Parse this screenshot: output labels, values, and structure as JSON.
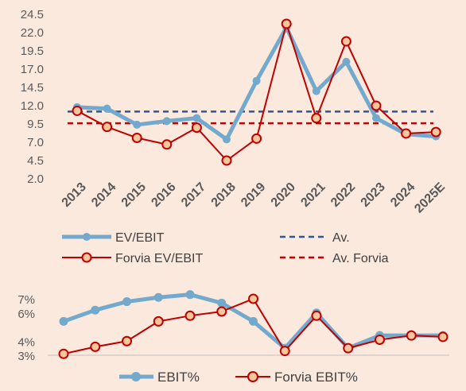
{
  "chart_data": [
    {
      "type": "line",
      "categories": [
        "2013",
        "2014",
        "2015",
        "2016",
        "2017",
        "2018",
        "2019",
        "2020",
        "2021",
        "2022",
        "2023",
        "2024",
        "2025E"
      ],
      "yticks": [
        "2.0",
        "4.5",
        "7.0",
        "9.5",
        "12.0",
        "14.5",
        "17.0",
        "19.5",
        "22.0",
        "24.5"
      ],
      "ylim": [
        2.0,
        24.5
      ],
      "grid": false,
      "legend_position": "bottom",
      "series": [
        {
          "name": "EV/EBIT",
          "style": "line-marker",
          "color": "#73a9cd",
          "values": [
            11.8,
            11.6,
            9.4,
            9.9,
            10.3,
            7.4,
            15.4,
            22.7,
            14.0,
            18.0,
            10.3,
            8.1,
            7.8
          ]
        },
        {
          "name": "Forvia EV/EBIT",
          "style": "line-marker",
          "color": "#c00000",
          "values": [
            11.3,
            9.1,
            7.6,
            6.7,
            9.0,
            4.5,
            7.5,
            23.2,
            10.3,
            20.8,
            12.0,
            8.2,
            8.4
          ]
        },
        {
          "name": "Av.",
          "style": "dashed",
          "color": "#2f5597",
          "value": 11.2
        },
        {
          "name": "Av. Forvia",
          "style": "dashed",
          "color": "#c00000",
          "value": 9.6
        }
      ]
    },
    {
      "type": "line",
      "categories": [
        "2013",
        "2014",
        "2015",
        "2016",
        "2017",
        "2018",
        "2019",
        "2020",
        "2021",
        "2022",
        "2023",
        "2024",
        "2025E"
      ],
      "yticks": [
        "3%",
        "4%",
        "6%",
        "7%"
      ],
      "ylim": [
        3,
        7
      ],
      "grid": false,
      "legend_position": "bottom",
      "series": [
        {
          "name": "EBIT%",
          "color": "#73a9cd",
          "values": [
            5.4,
            6.2,
            6.8,
            7.1,
            7.3,
            6.7,
            5.4,
            3.5,
            6.0,
            3.5,
            4.4,
            4.4,
            4.4
          ]
        },
        {
          "name": "Forvia EBIT%",
          "color": "#c00000",
          "values": [
            3.1,
            3.6,
            4.0,
            5.4,
            5.8,
            6.1,
            7.0,
            3.3,
            5.8,
            3.5,
            4.1,
            4.4,
            4.3
          ]
        }
      ]
    }
  ]
}
